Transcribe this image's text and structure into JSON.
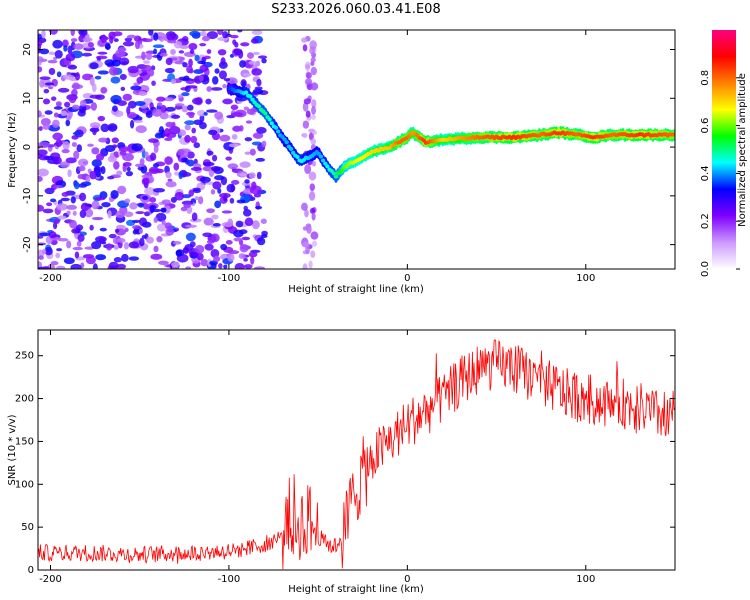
{
  "title": "S233.2026.060.03.41.E08",
  "colorbar": {
    "label": "Normalized spectral amplitude",
    "range": [
      0,
      1
    ],
    "ticks": [
      "0.0",
      "0.2",
      "0.4",
      "0.6",
      "0.8"
    ],
    "colors": [
      "#ffffff",
      "#cc99ff",
      "#7f00ff",
      "#0000ff",
      "#00ffff",
      "#00ff00",
      "#ffff00",
      "#ff8000",
      "#ff0000",
      "#ff0080"
    ]
  },
  "chart_data": [
    {
      "type": "heatmap",
      "name": "spectrogram",
      "xlabel": "Height of straight line (km)",
      "ylabel": "Frequency (Hz)",
      "xlim": [
        -207,
        150
      ],
      "ylim": [
        -25,
        24
      ],
      "xticks": [
        -200,
        -100,
        0,
        100
      ],
      "yticks": [
        20,
        10,
        0,
        -10,
        -20
      ],
      "ridge": {
        "x": [
          -100,
          -90,
          -80,
          -70,
          -60,
          -50,
          -45,
          -40,
          -35,
          -30,
          -20,
          -10,
          -5,
          0,
          3,
          10,
          20,
          40,
          60,
          75,
          85,
          95,
          105,
          115,
          130,
          150
        ],
        "y": [
          12,
          11,
          7,
          2,
          -3,
          -1,
          -4,
          -6,
          -4,
          -3,
          -1,
          0,
          1,
          2,
          3,
          1,
          1.5,
          2,
          2,
          2.5,
          3,
          2.5,
          2,
          2.5,
          2.5,
          2.5
        ],
        "amplitude": [
          0.35,
          0.45,
          0.5,
          0.4,
          0.45,
          0.4,
          0.45,
          0.5,
          0.6,
          0.65,
          0.7,
          0.72,
          0.8,
          0.8,
          0.75,
          0.85,
          0.7,
          0.8,
          0.85,
          0.8,
          0.85,
          0.8,
          0.85,
          0.8,
          0.85,
          0.8
        ]
      },
      "noise_region_x": [
        -207,
        -80
      ]
    },
    {
      "type": "line",
      "name": "snr",
      "color": "#ff0000",
      "xlabel": "Height of straight line (km)",
      "ylabel": "SNR (10 * v/v)",
      "xlim": [
        -207,
        150
      ],
      "ylim": [
        0,
        280
      ],
      "xticks": [
        -200,
        -100,
        0,
        100
      ],
      "yticks": [
        0,
        50,
        100,
        150,
        200,
        250
      ],
      "x": [
        -207,
        -180,
        -150,
        -120,
        -100,
        -90,
        -80,
        -70,
        -60,
        -55,
        -50,
        -45,
        -40,
        -35,
        -30,
        -20,
        -10,
        0,
        10,
        20,
        30,
        40,
        50,
        60,
        70,
        80,
        90,
        100,
        110,
        120,
        130,
        140,
        150
      ],
      "values": [
        20,
        20,
        18,
        20,
        22,
        25,
        30,
        40,
        55,
        60,
        40,
        30,
        28,
        45,
        90,
        130,
        150,
        170,
        185,
        200,
        220,
        235,
        240,
        235,
        225,
        215,
        205,
        200,
        195,
        195,
        190,
        180,
        185
      ]
    }
  ]
}
